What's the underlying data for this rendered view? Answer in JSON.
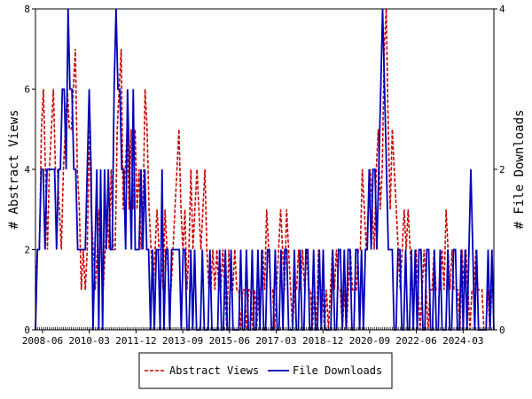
{
  "chart_data": {
    "type": "line",
    "x_tick_labels": [
      "2008-06",
      "2010-03",
      "2011-12",
      "2013-09",
      "2015-06",
      "2017-03",
      "2018-12",
      "2020-09",
      "2022-06",
      "2024-03"
    ],
    "y_left": {
      "label": "# Abstract Views",
      "range": [
        0,
        8
      ],
      "ticks": [
        "0",
        "2",
        "4",
        "6",
        "8"
      ]
    },
    "y_right": {
      "label": "# File Downloads",
      "range": [
        0,
        4
      ],
      "ticks": [
        "0",
        "2",
        "4"
      ]
    },
    "legend_position": "bottom-center",
    "grid": false,
    "series": [
      {
        "name": "Abstract Views",
        "axis": "left",
        "color": "#cc0000",
        "style": "dashed",
        "values": [
          1,
          2,
          2,
          5,
          6,
          4,
          2,
          4,
          5,
          6,
          4,
          4,
          3,
          2,
          4,
          5,
          6,
          5,
          5,
          6,
          7,
          4,
          3,
          1,
          2,
          1,
          2,
          5,
          3,
          2,
          1,
          2,
          3,
          2,
          1,
          2,
          3,
          2,
          4,
          2,
          2,
          5,
          6,
          7,
          3,
          4,
          5,
          3,
          5,
          3,
          5,
          3,
          4,
          2,
          3,
          6,
          5,
          3,
          2,
          1,
          2,
          3,
          2,
          2,
          1,
          3,
          2,
          1,
          1,
          2,
          3,
          4,
          5,
          3,
          2,
          3,
          1,
          2,
          4,
          2,
          3,
          4,
          3,
          2,
          3,
          4,
          2,
          1,
          1,
          2,
          1,
          2,
          1,
          1,
          2,
          1,
          0,
          2,
          1,
          1,
          2,
          1,
          1,
          0,
          1,
          1,
          0,
          1,
          1,
          0,
          1,
          0,
          1,
          1,
          2,
          1,
          3,
          2,
          1,
          1,
          0,
          1,
          2,
          3,
          2,
          1,
          3,
          2,
          1,
          0,
          1,
          1,
          2,
          1,
          2,
          1,
          2,
          1,
          1,
          0,
          1,
          0,
          2,
          1,
          1,
          0,
          1,
          0,
          1,
          2,
          1,
          2,
          1,
          1,
          0,
          1,
          0,
          1,
          2,
          1,
          1,
          1,
          2,
          2,
          4,
          3,
          2,
          3,
          4,
          3,
          2,
          4,
          5,
          3,
          4,
          7,
          8,
          5,
          3,
          5,
          4,
          3,
          2,
          1,
          2,
          3,
          2,
          3,
          2,
          1,
          1,
          2,
          1,
          0,
          1,
          2,
          1,
          0,
          1,
          1,
          2,
          1,
          1,
          1,
          2,
          1,
          3,
          2,
          1,
          2,
          1,
          1,
          1,
          0,
          2,
          1,
          2,
          1,
          0,
          1,
          1,
          2,
          1,
          1,
          1,
          0,
          0,
          1,
          0,
          1,
          1
        ]
      },
      {
        "name": "File Downloads",
        "axis": "right",
        "color": "#0000bb",
        "style": "solid",
        "values": [
          0,
          1,
          1,
          2,
          2,
          1,
          2,
          2,
          2,
          2,
          2,
          1,
          2,
          2,
          3,
          3,
          2,
          4,
          3,
          3,
          2,
          2,
          1,
          1,
          1,
          1,
          1,
          2,
          3,
          2,
          0,
          1,
          2,
          0,
          2,
          0,
          2,
          1,
          2,
          1,
          1,
          3,
          4,
          3,
          3,
          2,
          2,
          1,
          3,
          2,
          1,
          3,
          1,
          1,
          1,
          2,
          1,
          2,
          1,
          1,
          0,
          1,
          0,
          1,
          1,
          0,
          2,
          0,
          1,
          1,
          0,
          1,
          1,
          1,
          1,
          1,
          0,
          1,
          1,
          0,
          0,
          1,
          0,
          1,
          0,
          0,
          0,
          1,
          0,
          0,
          0,
          1,
          0,
          0,
          0,
          0,
          1,
          0,
          0,
          1,
          0,
          0,
          1,
          0,
          0,
          0,
          0,
          1,
          0,
          0,
          1,
          0,
          0,
          1,
          0,
          0,
          1,
          0,
          1,
          0,
          0,
          1,
          1,
          0,
          0,
          1,
          0,
          0,
          1,
          0,
          1,
          1,
          0,
          0,
          0,
          1,
          0,
          0,
          1,
          0,
          0,
          1,
          1,
          0,
          0,
          1,
          0,
          0,
          1,
          0,
          1,
          0,
          0,
          0,
          0,
          1,
          0,
          0,
          1,
          1,
          0,
          1,
          0,
          1,
          1,
          0,
          0,
          1,
          1,
          0,
          1,
          0,
          1,
          1,
          2,
          1,
          2,
          2,
          1,
          2,
          3,
          4,
          3,
          2,
          1,
          1,
          1,
          0,
          0,
          1,
          1,
          0,
          0,
          1,
          0,
          0,
          1,
          0,
          1,
          0,
          1,
          1,
          0,
          0,
          1,
          1,
          0,
          0,
          1,
          0,
          0,
          1,
          0,
          0,
          0,
          1,
          0,
          0,
          1,
          1,
          0,
          0,
          1,
          0,
          1,
          0,
          1,
          2,
          1,
          0,
          1,
          0,
          0,
          0,
          0,
          0,
          1,
          0,
          1,
          0
        ]
      }
    ]
  }
}
